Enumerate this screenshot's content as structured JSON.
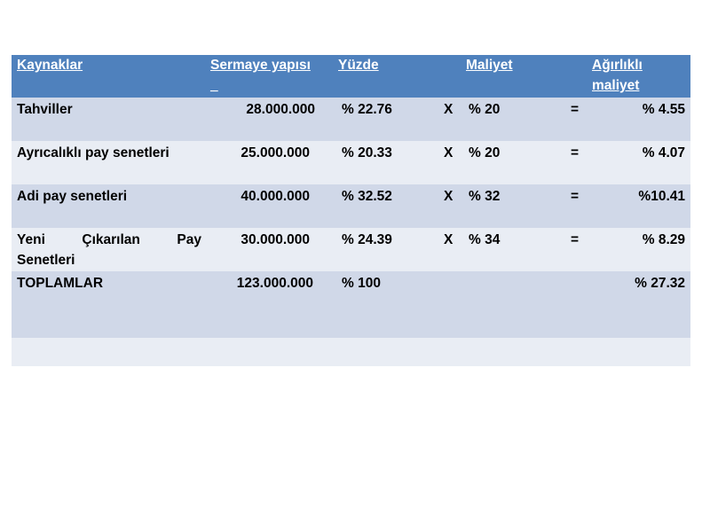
{
  "header": {
    "kaynaklar": "Kaynaklar",
    "sermaye_line1": "Sermaye yapısı",
    "sermaye_line2": "_",
    "yuzde": "Yüzde",
    "maliyet": "Maliyet",
    "agirlikli_line1": "Ağırlıklı",
    "agirlikli_line2": "maliyet"
  },
  "rows": [
    {
      "source": "Tahviller",
      "capital": "28.000.000",
      "percent": "% 22.76",
      "x": "X",
      "cost": "% 20",
      "eq": "=",
      "weighted": "% 4.55"
    },
    {
      "source": "Ayrıcalıklı pay senetleri",
      "capital": "25.000.000",
      "percent": "% 20.33",
      "x": "X",
      "cost": "% 20",
      "eq": "=",
      "weighted": "% 4.07"
    },
    {
      "source": "Adi pay senetleri",
      "capital": "40.000.000",
      "percent": "% 32.52",
      "x": "X",
      "cost": "% 32",
      "eq": "=",
      "weighted": "%10.41"
    },
    {
      "source_words": [
        "Yeni",
        "Çıkarılan",
        "Pay"
      ],
      "source_line2": "Senetleri",
      "capital": "30.000.000",
      "percent": "% 24.39",
      "x": "X",
      "cost": "% 34",
      "eq": "=",
      "weighted": "% 8.29"
    }
  ],
  "totals": {
    "label": "TOPLAMLAR",
    "capital": "123.000.000",
    "percent": "% 100",
    "weighted": "% 27.32"
  },
  "colors": {
    "header_bg": "#4f81bd",
    "row_dark": "#d0d8e8",
    "row_light": "#e9edf4"
  }
}
